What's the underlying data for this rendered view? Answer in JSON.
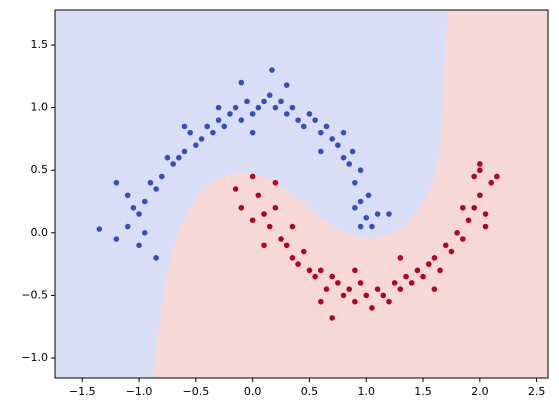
{
  "chart_data": {
    "type": "scatter",
    "xlim": [
      -1.74,
      2.6
    ],
    "ylim": [
      -1.16,
      1.78
    ],
    "xticks": [
      {
        "value": -1.5,
        "label": "−1.5"
      },
      {
        "value": -1.0,
        "label": "−1.0"
      },
      {
        "value": -0.5,
        "label": "−0.5"
      },
      {
        "value": 0,
        "label": "0.0"
      },
      0.5,
      {
        "value": 1,
        "label": "1.0"
      },
      1.5,
      {
        "value": 2,
        "label": "2.0"
      },
      2.5
    ],
    "yticks": [
      {
        "value": -1.0,
        "label": "−1.0"
      },
      {
        "value": -0.5,
        "label": "−0.5"
      },
      {
        "value": 0,
        "label": "0.0"
      },
      0.5,
      {
        "value": 1,
        "label": "1.0"
      },
      1.5
    ],
    "series": [
      {
        "color": "#3b4cc0",
        "x": [
          1.05,
          1.0,
          1.1,
          0.95,
          1.02,
          0.9,
          0.95,
          0.85,
          0.88,
          0.8,
          0.75,
          0.7,
          0.65,
          0.6,
          0.55,
          0.5,
          0.45,
          0.4,
          0.35,
          0.3,
          0.25,
          0.2,
          0.15,
          0.1,
          0.05,
          0.0,
          -0.05,
          -0.1,
          -0.15,
          -0.2,
          -0.25,
          -0.3,
          -0.35,
          -0.4,
          -0.45,
          -0.5,
          -0.55,
          -0.6,
          -0.65,
          -0.7,
          -0.75,
          -0.8,
          -0.85,
          -0.9,
          -0.95,
          -1.0,
          -1.05,
          -1.1,
          -0.95,
          -1.0,
          -1.2,
          -1.35,
          -0.85,
          0.17,
          -0.1,
          0.3,
          0.6,
          0.8,
          1.2,
          0.9,
          -0.6,
          -0.3,
          0.0,
          0.95,
          -1.1,
          -1.2
        ],
        "y": [
          0.05,
          0.12,
          0.15,
          0.25,
          0.3,
          0.4,
          0.5,
          0.55,
          0.65,
          0.6,
          0.7,
          0.75,
          0.85,
          0.8,
          0.9,
          0.95,
          0.85,
          0.9,
          1.0,
          0.95,
          1.05,
          1.0,
          1.1,
          1.05,
          1.0,
          0.95,
          1.05,
          0.9,
          1.0,
          0.95,
          0.85,
          0.9,
          0.8,
          0.85,
          0.75,
          0.7,
          0.8,
          0.65,
          0.6,
          0.55,
          0.6,
          0.45,
          0.35,
          0.4,
          0.25,
          0.15,
          0.2,
          0.05,
          0.0,
          -0.1,
          -0.05,
          0.03,
          -0.2,
          1.3,
          1.2,
          1.18,
          0.65,
          0.8,
          0.15,
          0.2,
          0.85,
          1.0,
          0.8,
          0.05,
          0.3,
          0.4
        ]
      },
      {
        "color": "#b40426",
        "x": [
          -0.15,
          -0.1,
          0.0,
          0.05,
          0.1,
          0.15,
          0.2,
          0.25,
          0.3,
          0.35,
          0.4,
          0.45,
          0.5,
          0.55,
          0.6,
          0.65,
          0.7,
          0.75,
          0.8,
          0.85,
          0.9,
          0.95,
          1.0,
          1.05,
          1.1,
          1.15,
          1.2,
          1.25,
          1.3,
          1.35,
          1.4,
          1.45,
          1.5,
          1.55,
          1.6,
          1.65,
          1.7,
          1.75,
          1.8,
          1.85,
          1.9,
          1.95,
          2.0,
          2.05,
          2.1,
          2.0,
          1.95,
          2.15,
          2.05,
          0.7,
          0.2,
          0.1,
          0.35,
          0.6,
          1.3,
          1.85,
          2.0,
          0.9,
          1.6,
          0.0
        ],
        "y": [
          0.35,
          0.2,
          0.45,
          0.3,
          0.15,
          0.05,
          0.2,
          -0.05,
          -0.1,
          -0.2,
          -0.25,
          -0.15,
          -0.3,
          -0.35,
          -0.3,
          -0.45,
          -0.35,
          -0.4,
          -0.5,
          -0.45,
          -0.55,
          -0.4,
          -0.5,
          -0.6,
          -0.45,
          -0.5,
          -0.55,
          -0.4,
          -0.45,
          -0.35,
          -0.4,
          -0.3,
          -0.35,
          -0.25,
          -0.2,
          -0.3,
          -0.1,
          -0.15,
          0.0,
          -0.05,
          0.1,
          0.2,
          0.3,
          0.15,
          0.4,
          0.5,
          0.45,
          0.45,
          0.05,
          -0.68,
          0.4,
          -0.1,
          0.05,
          -0.55,
          -0.2,
          0.2,
          0.55,
          -0.3,
          -0.45,
          0.1
        ]
      }
    ]
  }
}
